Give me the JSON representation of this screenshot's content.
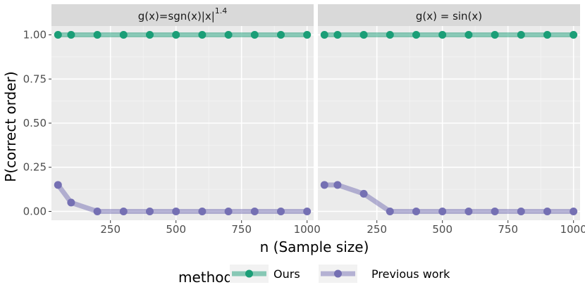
{
  "chart_data": {
    "type": "line",
    "xlabel": "n (Sample size)",
    "ylabel": "P(correct order)",
    "xlim": [
      25,
      1025
    ],
    "ylim": [
      -0.05,
      1.05
    ],
    "x_ticks": [
      250,
      500,
      750,
      1000
    ],
    "x_tick_labels": [
      "250",
      "500",
      "750",
      "1000"
    ],
    "y_ticks": [
      0,
      0.25,
      0.5,
      0.75,
      1
    ],
    "y_tick_labels": [
      "0.00",
      "0.25",
      "0.50",
      "0.75",
      "1.00"
    ],
    "grid": true,
    "legend": {
      "title": "methods",
      "position": "bottom",
      "entries": [
        "Ours",
        "Previous work"
      ]
    },
    "colors": {
      "Ours": "#1b9e77",
      "Previous work": "#7570b3"
    },
    "facets": [
      {
        "title_main": "g(x)=sgn(x)|x|",
        "title_sup": "1.4",
        "x": [
          50,
          100,
          200,
          300,
          400,
          500,
          600,
          700,
          800,
          900,
          1000
        ],
        "series": [
          {
            "name": "Ours",
            "values": [
              1,
              1,
              1,
              1,
              1,
              1,
              1,
              1,
              1,
              1,
              1
            ]
          },
          {
            "name": "Previous work",
            "values": [
              0.15,
              0.05,
              0,
              0,
              0,
              0,
              0,
              0,
              0,
              0,
              0
            ]
          }
        ]
      },
      {
        "title_main": "g(x) = sin(x)",
        "title_sup": "",
        "x": [
          50,
          100,
          200,
          300,
          400,
          500,
          600,
          700,
          800,
          900,
          1000
        ],
        "series": [
          {
            "name": "Ours",
            "values": [
              1,
              1,
              1,
              1,
              1,
              1,
              1,
              1,
              1,
              1,
              1
            ]
          },
          {
            "name": "Previous work",
            "values": [
              0.15,
              0.15,
              0.1,
              0,
              0,
              0,
              0,
              0,
              0,
              0,
              0
            ]
          }
        ]
      }
    ]
  }
}
